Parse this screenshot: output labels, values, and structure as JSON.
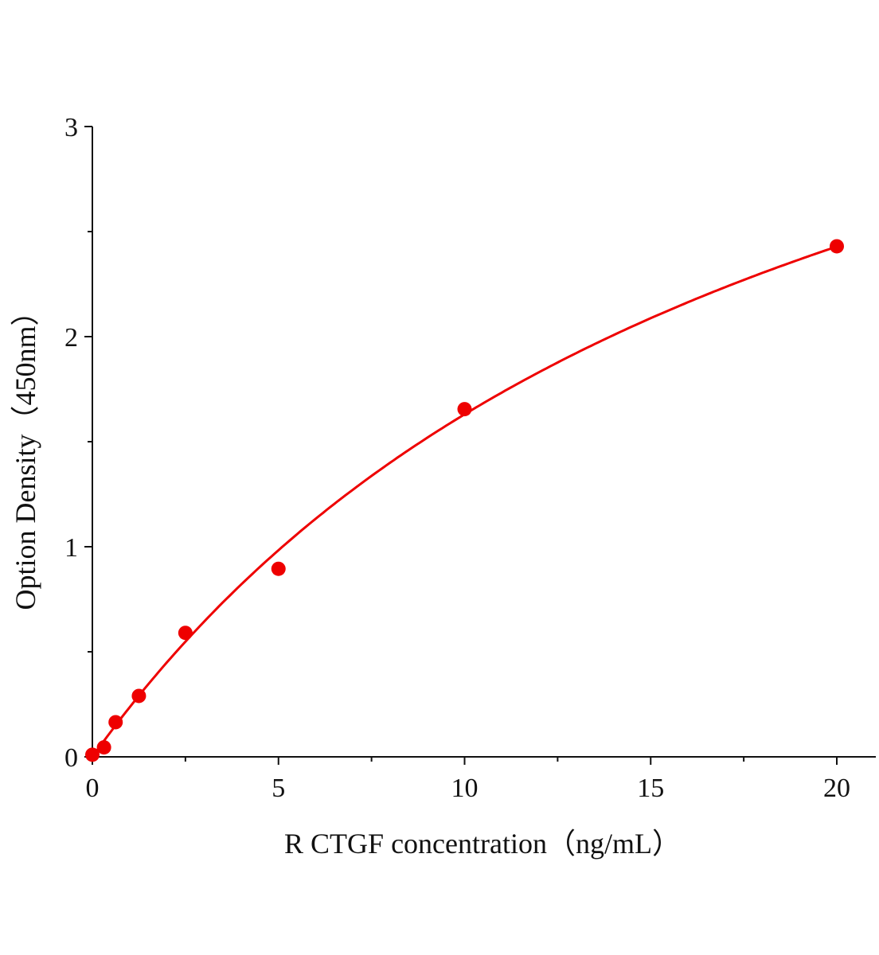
{
  "chart_data": {
    "type": "scatter",
    "title": "",
    "xlabel": "R CTGF  concentration（ng/mL）",
    "ylabel": "Option Density（450nm）",
    "xlim": [
      0,
      20
    ],
    "ylim": [
      0,
      3
    ],
    "xticks": [
      "0",
      "5",
      "10",
      "15",
      "20"
    ],
    "yticks": [
      "0",
      "1",
      "2",
      "3"
    ],
    "grid": false,
    "legend": "none",
    "color": "#ee0000",
    "points": {
      "x": [
        0,
        0.3125,
        0.625,
        1.25,
        2.5,
        5,
        10,
        20
      ],
      "y": [
        0.01,
        0.045,
        0.165,
        0.29,
        0.59,
        0.895,
        1.655,
        2.43
      ]
    },
    "fit_curve": {
      "type": "hyperbolic",
      "a": 4.76,
      "b": 19.2
    }
  }
}
